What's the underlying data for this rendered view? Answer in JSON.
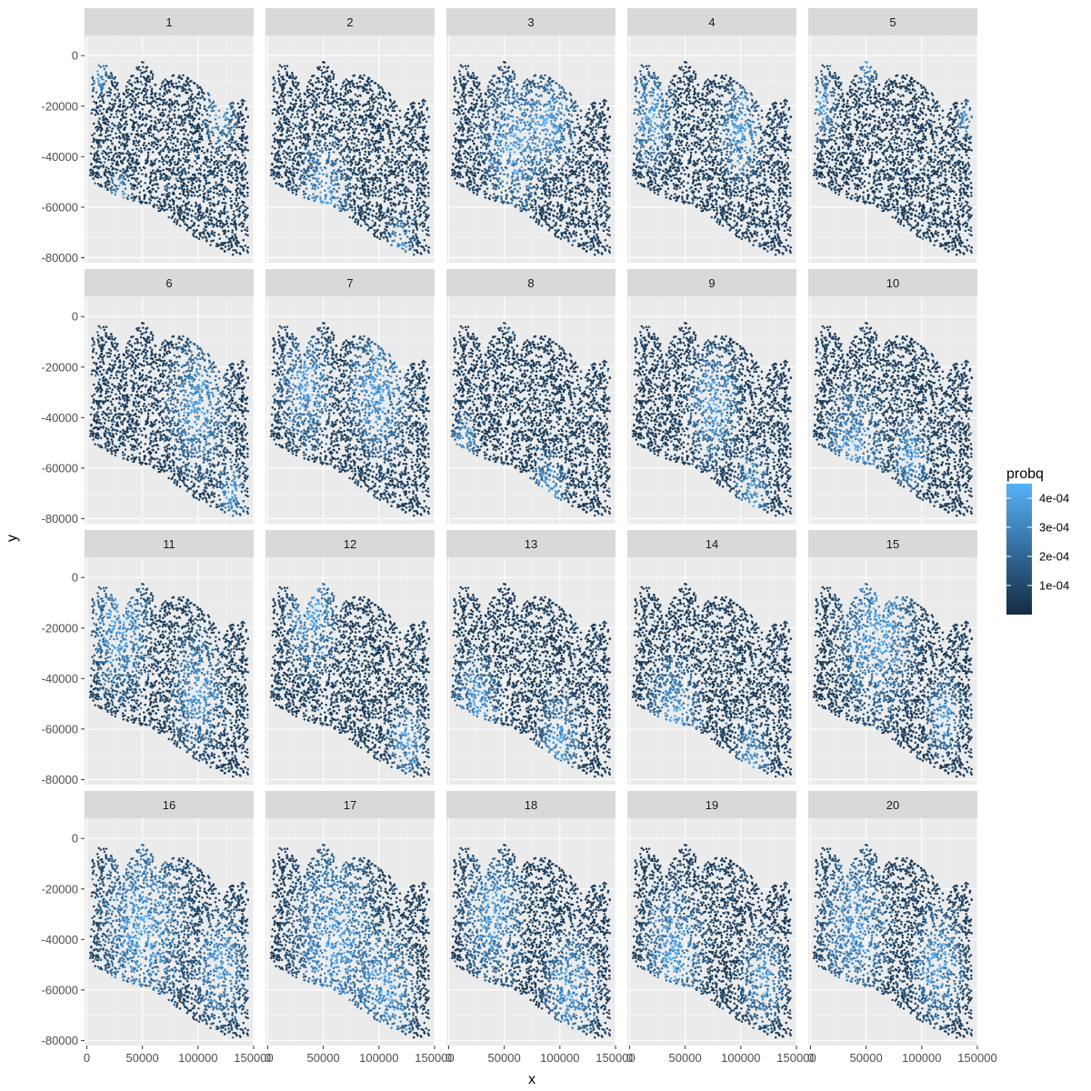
{
  "chart_data": {
    "type": "scatter",
    "facet_by": "cluster",
    "facets": [
      "1",
      "2",
      "3",
      "4",
      "5",
      "6",
      "7",
      "8",
      "9",
      "10",
      "11",
      "12",
      "13",
      "14",
      "15",
      "16",
      "17",
      "18",
      "19",
      "20"
    ],
    "facet_layout": {
      "ncol": 5,
      "nrow": 4
    },
    "xlabel": "x",
    "ylabel": "y",
    "xlim": [
      -2000,
      150000
    ],
    "ylim": [
      -82000,
      8000
    ],
    "x_ticks": [
      0,
      50000,
      100000,
      150000
    ],
    "x_tick_labels": [
      "0",
      "50000",
      "100000",
      "150000"
    ],
    "y_ticks": [
      0,
      -20000,
      -40000,
      -60000,
      -80000
    ],
    "y_tick_labels": [
      "0",
      "-20000",
      "-40000",
      "-60000",
      "-80000"
    ],
    "grid": true,
    "color_variable": "probq",
    "color_scale": {
      "type": "continuous",
      "low_color": "#132b43",
      "high_color": "#56b1f7",
      "range": [
        0,
        0.00045
      ],
      "breaks": [
        0.0001,
        0.0002,
        0.0003,
        0.0004
      ],
      "break_labels": [
        "1e-04",
        "2e-04",
        "3e-04",
        "4e-04"
      ]
    },
    "legend": {
      "title": "probq",
      "position": "right"
    },
    "tissue_outline": [
      [
        3000,
        -48000
      ],
      [
        5000,
        -8000
      ],
      [
        10000,
        -3000
      ],
      [
        16000,
        -3000
      ],
      [
        25000,
        -8000
      ],
      [
        32000,
        -14000
      ],
      [
        42000,
        -6000
      ],
      [
        50000,
        -2000
      ],
      [
        58000,
        -6000
      ],
      [
        64000,
        -12000
      ],
      [
        75000,
        -7000
      ],
      [
        90000,
        -8000
      ],
      [
        110000,
        -15000
      ],
      [
        122000,
        -24000
      ],
      [
        130000,
        -18000
      ],
      [
        140000,
        -16000
      ],
      [
        145000,
        -22000
      ],
      [
        145000,
        -78000
      ],
      [
        135000,
        -80000
      ],
      [
        115000,
        -76000
      ],
      [
        90000,
        -70000
      ],
      [
        60000,
        -60000
      ],
      [
        30000,
        -56000
      ],
      [
        10000,
        -52000
      ]
    ],
    "point_count_per_facet": 2400,
    "high_probability_regions": {
      "1": [
        {
          "x": 120000,
          "y": -22000,
          "r": 18000
        },
        {
          "x": 12000,
          "y": -8000,
          "r": 10000
        },
        {
          "x": 30000,
          "y": -55000,
          "r": 12000
        }
      ],
      "2": [
        {
          "x": 50000,
          "y": -58000,
          "r": 30000
        },
        {
          "x": 120000,
          "y": -74000,
          "r": 15000
        }
      ],
      "3": [
        {
          "x": 60000,
          "y": -35000,
          "r": 35000
        },
        {
          "x": 95000,
          "y": -25000,
          "r": 25000
        }
      ],
      "4": [
        {
          "x": 20000,
          "y": -25000,
          "r": 25000
        },
        {
          "x": 100000,
          "y": -30000,
          "r": 25000
        }
      ],
      "5": [
        {
          "x": 10000,
          "y": -20000,
          "r": 18000
        },
        {
          "x": 50000,
          "y": -5000,
          "r": 12000
        },
        {
          "x": 140000,
          "y": -25000,
          "r": 10000
        }
      ],
      "6": [
        {
          "x": 100000,
          "y": -35000,
          "r": 35000
        },
        {
          "x": 130000,
          "y": -70000,
          "r": 15000
        }
      ],
      "7": [
        {
          "x": 35000,
          "y": -28000,
          "r": 30000
        },
        {
          "x": 100000,
          "y": -30000,
          "r": 35000
        }
      ],
      "8": [
        {
          "x": 15000,
          "y": -50000,
          "r": 15000
        },
        {
          "x": 90000,
          "y": -70000,
          "r": 20000
        }
      ],
      "9": [
        {
          "x": 75000,
          "y": -35000,
          "r": 30000
        },
        {
          "x": 110000,
          "y": -68000,
          "r": 20000
        }
      ],
      "10": [
        {
          "x": 40000,
          "y": -55000,
          "r": 35000
        },
        {
          "x": 90000,
          "y": -55000,
          "r": 20000
        }
      ],
      "11": [
        {
          "x": 30000,
          "y": -20000,
          "r": 35000
        },
        {
          "x": 100000,
          "y": -45000,
          "r": 30000
        }
      ],
      "12": [
        {
          "x": 40000,
          "y": -15000,
          "r": 30000
        },
        {
          "x": 125000,
          "y": -65000,
          "r": 20000
        }
      ],
      "13": [
        {
          "x": 25000,
          "y": -50000,
          "r": 25000
        },
        {
          "x": 100000,
          "y": -65000,
          "r": 25000
        }
      ],
      "14": [
        {
          "x": 40000,
          "y": -55000,
          "r": 30000
        },
        {
          "x": 110000,
          "y": -72000,
          "r": 20000
        }
      ],
      "15": [
        {
          "x": 60000,
          "y": -20000,
          "r": 45000
        },
        {
          "x": 120000,
          "y": -55000,
          "r": 20000
        }
      ],
      "16": [
        {
          "x": 50000,
          "y": -35000,
          "r": 50000
        },
        {
          "x": 120000,
          "y": -50000,
          "r": 30000
        }
      ],
      "17": [
        {
          "x": 60000,
          "y": -40000,
          "r": 50000
        },
        {
          "x": 110000,
          "y": -60000,
          "r": 30000
        }
      ],
      "18": [
        {
          "x": 40000,
          "y": -30000,
          "r": 35000
        },
        {
          "x": 110000,
          "y": -60000,
          "r": 30000
        }
      ],
      "19": [
        {
          "x": 40000,
          "y": -45000,
          "r": 35000
        },
        {
          "x": 120000,
          "y": -55000,
          "r": 25000
        }
      ],
      "20": [
        {
          "x": 40000,
          "y": -35000,
          "r": 40000
        },
        {
          "x": 115000,
          "y": -50000,
          "r": 30000
        }
      ]
    }
  }
}
